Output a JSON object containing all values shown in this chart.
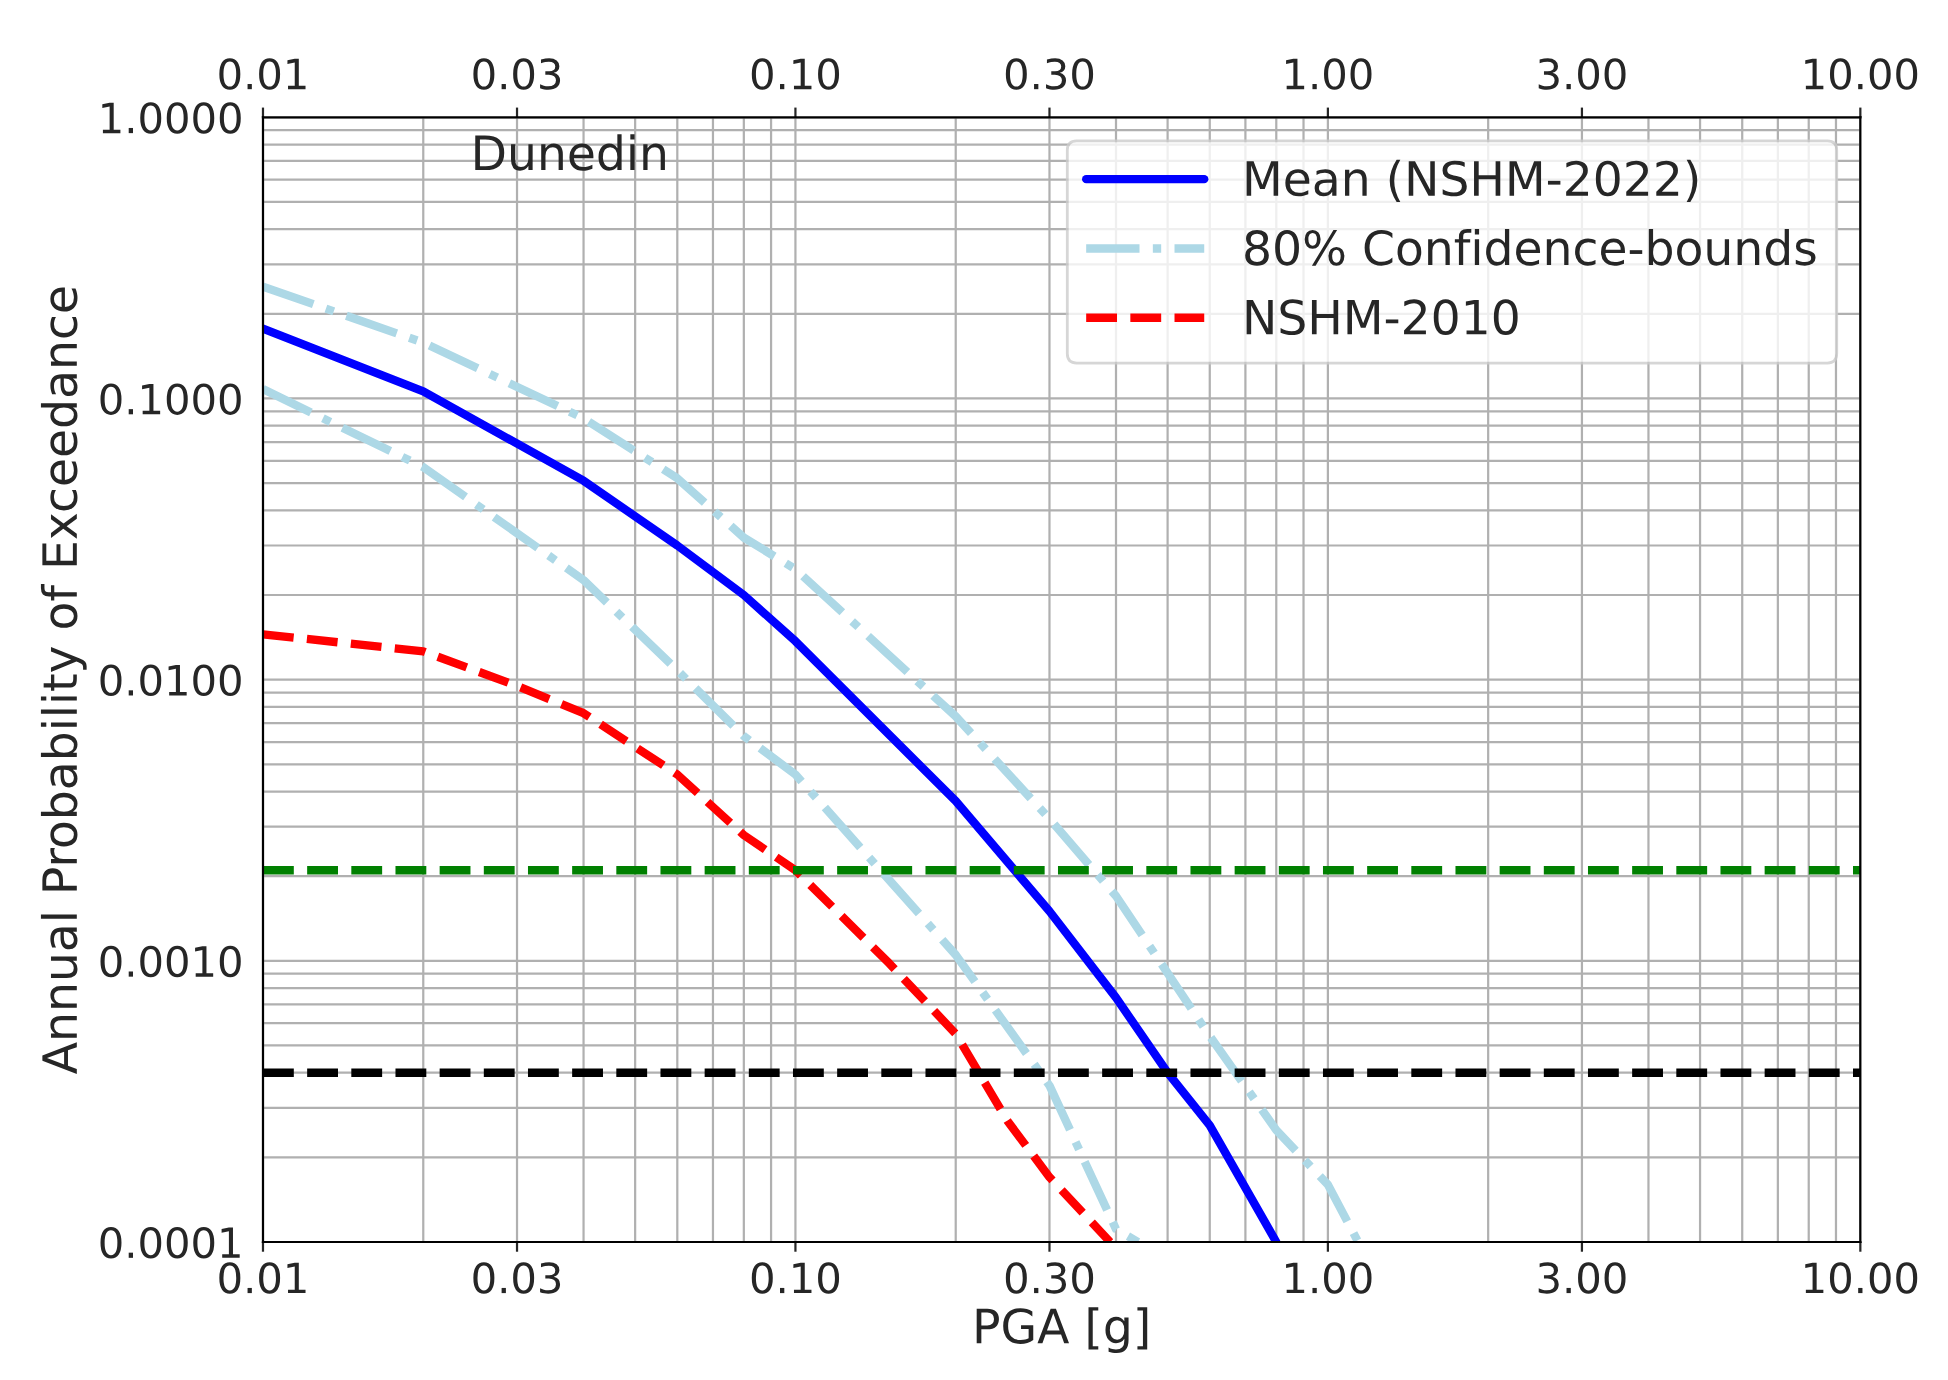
{
  "chart_data": {
    "type": "line",
    "xlabel": "PGA [g]",
    "ylabel": "Annual Probability of Exceedance",
    "annotations": [
      "Dunedin"
    ],
    "log": "xy",
    "grid": true,
    "legend": "top right",
    "xlim": [
      0.01,
      10
    ],
    "xticks": [
      {
        "value": 0.01,
        "label": "0.01"
      },
      {
        "value": 0.03,
        "label": "0.03"
      },
      {
        "value": 0.1,
        "label": "0.10"
      },
      {
        "value": 0.3,
        "label": "0.30"
      },
      {
        "value": 1,
        "label": "1.00"
      },
      {
        "value": 3,
        "label": "3.00"
      },
      {
        "value": 10,
        "label": "10.00"
      }
    ],
    "ylim": [
      0.0001,
      1
    ],
    "yticks": [
      {
        "value": 0.0001,
        "label": "0.0001"
      },
      {
        "value": 0.001,
        "label": "0.0010"
      },
      {
        "value": 0.01,
        "label": "0.0100"
      },
      {
        "value": 0.1,
        "label": "0.1000"
      },
      {
        "value": 1,
        "label": "1.0000"
      }
    ],
    "series": [
      {
        "name": "Mean (NSHM-2022)",
        "color": "#0000ff",
        "line_style": "solid",
        "x": [
          0.01,
          0.02,
          0.04,
          0.06,
          0.08,
          0.1,
          0.2,
          0.3,
          0.4,
          0.5,
          0.6,
          0.8
        ],
        "values": [
          0.177,
          0.106,
          0.051,
          0.03,
          0.02,
          0.0137,
          0.0037,
          0.0015,
          0.00074,
          0.0004,
          0.00026,
          0.0001
        ]
      },
      {
        "name": "80% Confidence-bounds",
        "color": "#add8e6",
        "line_style": "dashdot",
        "x": [
          0.01,
          0.02,
          0.04,
          0.06,
          0.08,
          0.1,
          0.2,
          0.3,
          0.4,
          0.6,
          0.8,
          1.0,
          1.14
        ],
        "values": [
          0.25,
          0.158,
          0.085,
          0.052,
          0.032,
          0.0247,
          0.0074,
          0.0032,
          0.0017,
          0.00054,
          0.00025,
          0.00016,
          0.0001
        ]
      },
      {
        "color": "#add8e6",
        "line_style": "dashdot",
        "x": [
          0.01,
          0.02,
          0.04,
          0.06,
          0.08,
          0.1,
          0.2,
          0.3,
          0.4,
          0.44
        ],
        "values": [
          0.108,
          0.057,
          0.0226,
          0.0108,
          0.0063,
          0.0046,
          0.00105,
          0.00036,
          0.000111,
          0.0001
        ]
      },
      {
        "name": "NSHM-2010",
        "color": "#ff0000",
        "line_style": "dashed",
        "x": [
          0.01,
          0.02,
          0.03,
          0.04,
          0.06,
          0.08,
          0.1,
          0.15,
          0.2,
          0.25,
          0.3,
          0.39
        ],
        "values": [
          0.0145,
          0.0126,
          0.0095,
          0.0076,
          0.0046,
          0.0028,
          0.0021,
          0.00098,
          0.00055,
          0.00027,
          0.00017,
          0.0001
        ]
      }
    ],
    "ref_lines": [
      {
        "axis": "y",
        "value": 0.0021,
        "color": "#008000",
        "line_style": "dashed"
      },
      {
        "axis": "y",
        "value": 0.0004,
        "color": "#000000",
        "line_style": "dashed"
      }
    ]
  }
}
